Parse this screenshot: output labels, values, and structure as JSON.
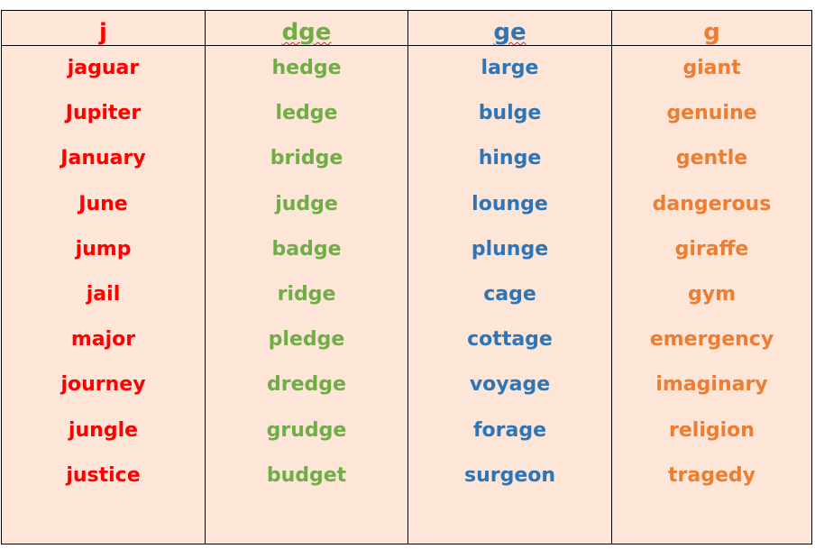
{
  "columns": [
    {
      "heading": "j",
      "heading_spellcheck": false,
      "color": "#ff0000",
      "words": [
        "jaguar",
        "Jupiter",
        "January",
        "June",
        "jump",
        "jail",
        "major",
        "journey",
        "jungle",
        "justice"
      ]
    },
    {
      "heading": "dge",
      "heading_spellcheck": true,
      "color": "#70ad47",
      "words": [
        "hedge",
        "ledge",
        "bridge",
        "judge",
        "badge",
        "ridge",
        "pledge",
        "dredge",
        "grudge",
        "budget"
      ]
    },
    {
      "heading": "ge",
      "heading_spellcheck": true,
      "color": "#2e75b6",
      "words": [
        "large",
        "bulge",
        "hinge",
        "lounge",
        "plunge",
        "cage",
        "cottage",
        "voyage",
        "forage",
        "surgeon"
      ]
    },
    {
      "heading": "g",
      "heading_spellcheck": false,
      "color": "#ed7d31",
      "words": [
        "giant",
        "genuine",
        "gentle",
        "dangerous",
        "giraffe",
        "gym",
        "emergency",
        "imaginary",
        "religion",
        "tragedy"
      ]
    }
  ]
}
